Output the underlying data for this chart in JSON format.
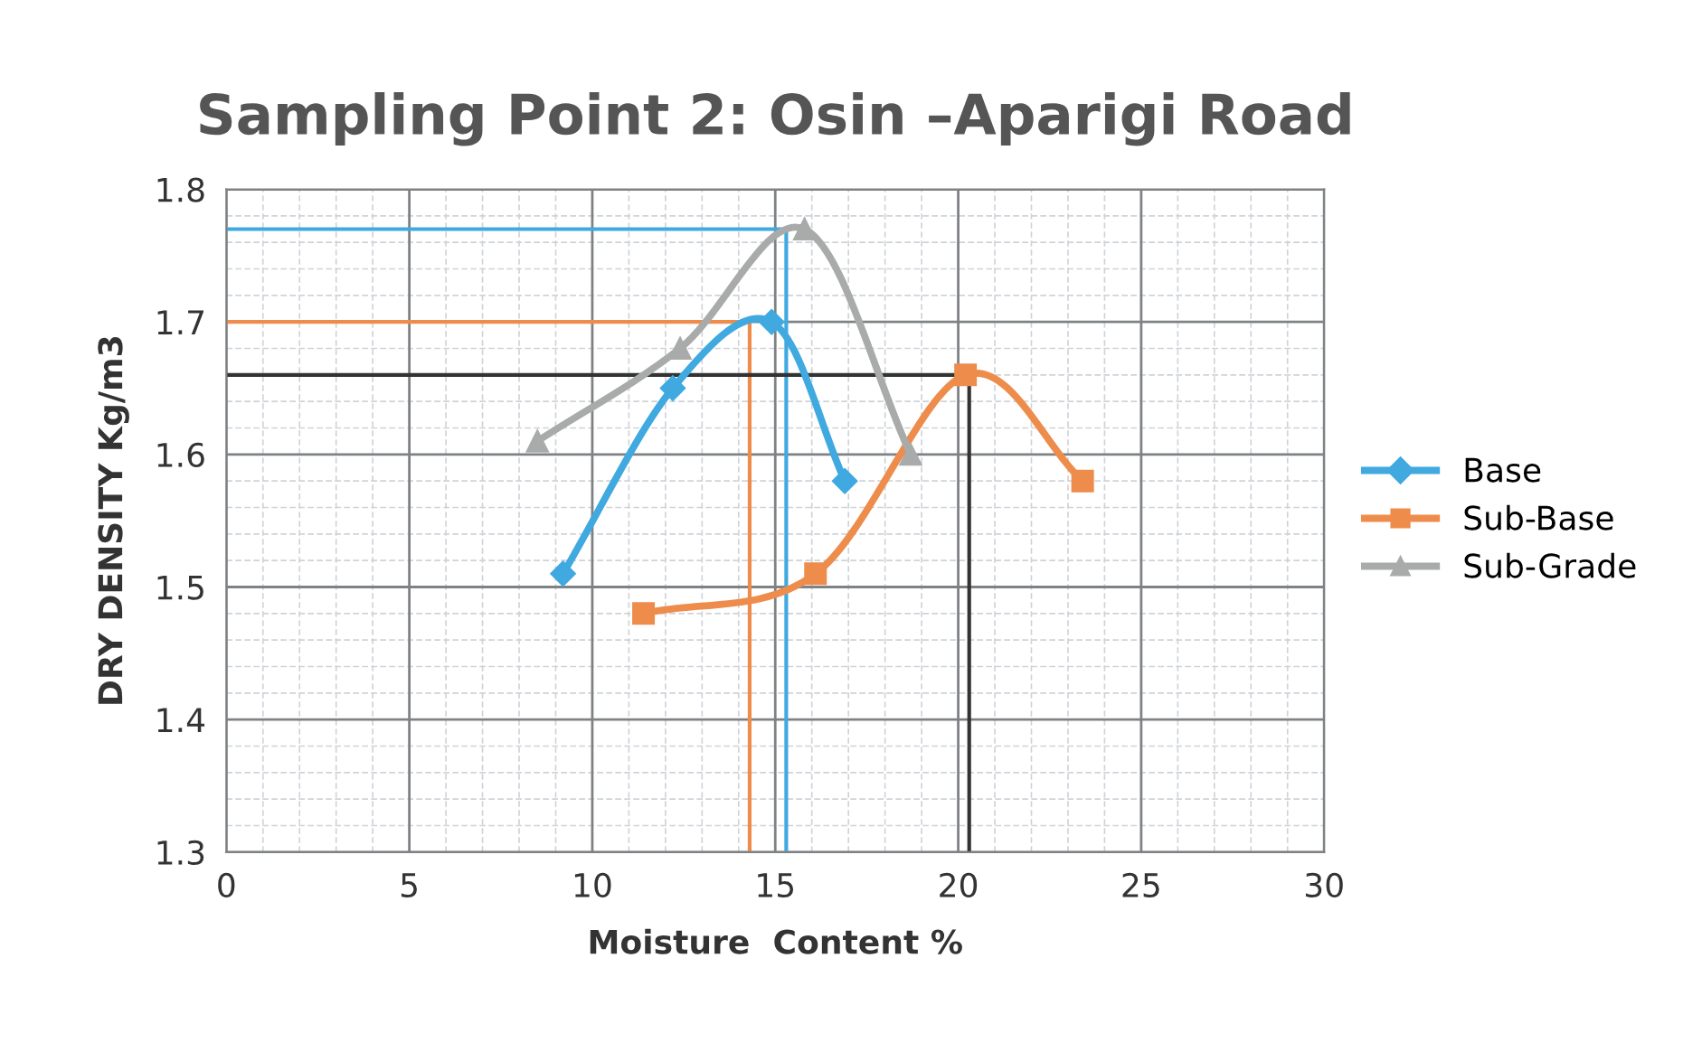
{
  "chart_data": {
    "type": "line",
    "title": "Sampling Point 2: Osin –Aparigi Road",
    "xlabel": "Moisture  Content %",
    "ylabel": "DRY DENSITY Kg/m3",
    "xlim": [
      0,
      30
    ],
    "xticks": [
      0,
      5,
      10,
      15,
      20,
      25,
      30
    ],
    "ylim": [
      1.3,
      1.8
    ],
    "yticks": [
      1.3,
      1.4,
      1.5,
      1.6,
      1.7,
      1.8
    ],
    "grid": true,
    "legend": "right",
    "series": [
      {
        "name": "Base",
        "color": "#3fa9e0",
        "marker": "diamond",
        "x": [
          9.2,
          12.2,
          14.9,
          16.9
        ],
        "values": [
          1.51,
          1.65,
          1.7,
          1.58
        ]
      },
      {
        "name": "Sub-Base",
        "color": "#ee8c4c",
        "marker": "square",
        "x": [
          11.4,
          16.1,
          20.2,
          23.4
        ],
        "values": [
          1.48,
          1.51,
          1.66,
          1.58
        ]
      },
      {
        "name": "Sub-Grade",
        "color": "#a9abab",
        "marker": "triangle",
        "x": [
          8.5,
          12.4,
          15.8,
          18.7
        ],
        "values": [
          1.61,
          1.68,
          1.77,
          1.6
        ]
      }
    ],
    "ref_lines": [
      {
        "axis": "y",
        "value": 1.77,
        "color": "#3fa9e0"
      },
      {
        "axis": "x",
        "value": 15.3,
        "color": "#3fa9e0"
      },
      {
        "axis": "y",
        "value": 1.7,
        "color": "#ee8c4c"
      },
      {
        "axis": "x",
        "value": 14.3,
        "color": "#ee8c4c"
      },
      {
        "axis": "y",
        "value": 1.66,
        "color": "#333333"
      },
      {
        "axis": "x",
        "value": 20.3,
        "color": "#333333"
      }
    ]
  }
}
